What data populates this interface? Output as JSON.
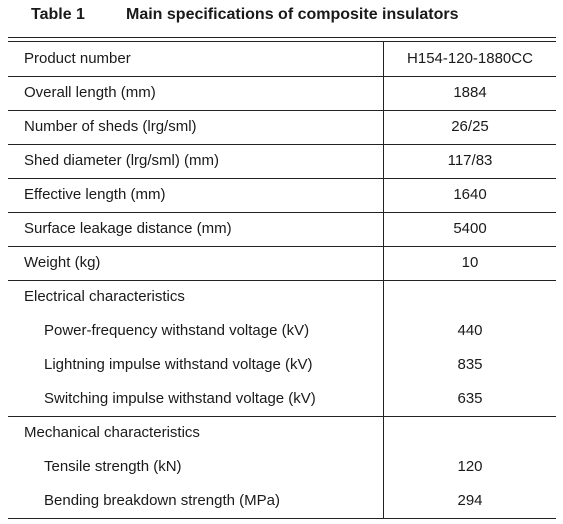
{
  "title": {
    "label": "Table 1",
    "text": "Main specifications of composite insulators"
  },
  "table": {
    "rows": [
      [
        "Product number",
        "H154-120-1880CC"
      ],
      [
        "Overall length (mm)",
        1884
      ],
      [
        "Number of sheds (lrg/sml)",
        "26/25"
      ],
      [
        "Shed diameter (lrg/sml) (mm)",
        "117/83"
      ],
      [
        "Effective length (mm)",
        1640
      ],
      [
        "Surface leakage distance (mm)",
        5400
      ],
      [
        "Weight (kg)",
        10
      ]
    ],
    "groups": [
      {
        "label": "Electrical characteristics",
        "rows": [
          [
            "Power-frequency withstand voltage (kV)",
            440
          ],
          [
            "Lightning impulse withstand voltage (kV)",
            835
          ],
          [
            "Switching impulse withstand voltage (kV)",
            635
          ]
        ]
      },
      {
        "label": "Mechanical characteristics",
        "rows": [
          [
            "Tensile strength (kN)",
            120
          ],
          [
            "Bending breakdown strength (MPa)",
            294
          ]
        ]
      }
    ]
  }
}
